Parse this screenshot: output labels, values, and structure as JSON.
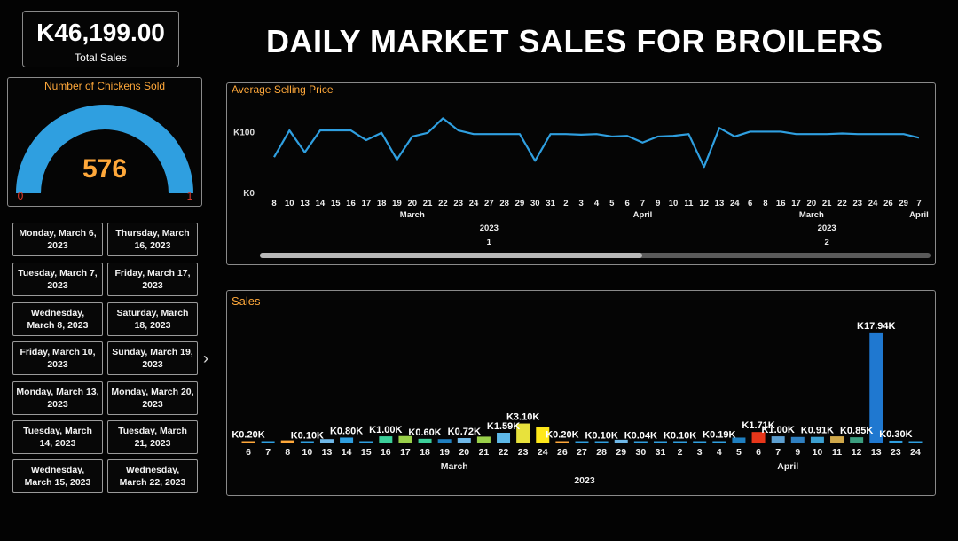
{
  "header": {
    "title": "DAILY MARKET SALES FOR BROILERS"
  },
  "kpi": {
    "value": "K46,199.00",
    "label": "Total Sales"
  },
  "gauge": {
    "title": "Number of Chickens Sold",
    "value": "576",
    "min": "0",
    "max": "1",
    "fill": 1.0,
    "color": "#2f9fe0",
    "value_color": "#ffa83a",
    "minmax_color": "#e03b2f"
  },
  "date_buttons": [
    "Monday, March 6, 2023",
    "Thursday, March 16, 2023",
    "Tuesday, March 7, 2023",
    "Friday, March 17, 2023",
    "Wednesday, March 8, 2023",
    "Saturday, March 18, 2023",
    "Friday, March 10, 2023",
    "Sunday, March 19, 2023",
    "Monday, March 13, 2023",
    "Monday, March 20, 2023",
    "Tuesday, March 14, 2023",
    "Tuesday, March 21, 2023",
    "Wednesday, March 15, 2023",
    "Wednesday, March 22, 2023"
  ],
  "chart_data": [
    {
      "type": "line",
      "title": "Average Selling Price",
      "y_ticks": [
        "K100",
        "K0"
      ],
      "ylim": [
        0,
        140
      ],
      "color": "#2f9fe0",
      "x": [
        "8",
        "10",
        "13",
        "14",
        "15",
        "16",
        "17",
        "18",
        "19",
        "20",
        "21",
        "22",
        "23",
        "24",
        "27",
        "28",
        "29",
        "30",
        "31",
        "2",
        "3",
        "4",
        "5",
        "6",
        "7",
        "9",
        "10",
        "11",
        "12",
        "13",
        "24",
        "6",
        "8",
        "16",
        "17",
        "20",
        "21",
        "22",
        "23",
        "24",
        "26",
        "29",
        "7"
      ],
      "values": [
        58,
        102,
        66,
        102,
        102,
        102,
        86,
        98,
        54,
        92,
        98,
        122,
        102,
        96,
        96,
        96,
        96,
        52,
        96,
        96,
        95,
        96,
        92,
        93,
        82,
        92,
        93,
        96,
        42,
        106,
        92,
        100,
        100,
        100,
        96,
        96,
        96,
        97,
        96,
        96,
        96,
        96,
        90
      ],
      "month_labels": [
        {
          "label": "March",
          "index": 9
        },
        {
          "label": "April",
          "index": 24
        },
        {
          "label": "March",
          "index": 35
        },
        {
          "label": "April",
          "index": 42
        }
      ],
      "year_labels": [
        {
          "label": "2023",
          "index": 14
        },
        {
          "label": "2023",
          "index": 36
        }
      ],
      "group_labels": [
        {
          "label": "1",
          "index": 14
        },
        {
          "label": "2",
          "index": 36
        }
      ],
      "scrollbar_position": 0.57
    },
    {
      "type": "bar",
      "title": "Sales",
      "categories": [
        "6",
        "7",
        "8",
        "10",
        "13",
        "14",
        "15",
        "16",
        "17",
        "18",
        "19",
        "20",
        "21",
        "22",
        "23",
        "24",
        "26",
        "27",
        "28",
        "29",
        "30",
        "31",
        "2",
        "3",
        "4",
        "5",
        "6",
        "7",
        "9",
        "10",
        "11",
        "12",
        "13",
        "23",
        "24"
      ],
      "values": [
        0.2,
        0.04,
        0.35,
        0.1,
        0.55,
        0.8,
        0.15,
        1.0,
        1.05,
        0.6,
        0.55,
        0.72,
        0.95,
        1.59,
        3.1,
        2.6,
        0.2,
        0.1,
        0.1,
        0.45,
        0.04,
        0.1,
        0.1,
        0.15,
        0.19,
        0.8,
        1.71,
        1.0,
        0.9,
        0.91,
        1.0,
        0.85,
        17.94,
        0.3,
        0.02
      ],
      "colors": [
        "#ffa83a",
        "#2f9fe0",
        "#ffa83a",
        "#2f9fe0",
        "#6fb8e8",
        "#2f9fe0",
        "#2f9fe0",
        "#3ccf9a",
        "#9ad04a",
        "#3ccf9a",
        "#1f7fc0",
        "#6fb8e8",
        "#9ad04a",
        "#5db8e8",
        "#e8e23c",
        "#ffe81a",
        "#ffa83a",
        "#2f9fe0",
        "#2f9fe0",
        "#6fb8e8",
        "#2f9fe0",
        "#2f9fe0",
        "#2f9fe0",
        "#2f9fe0",
        "#2f9fe0",
        "#1f7fc0",
        "#e8361a",
        "#5d9fd0",
        "#2f7fc0",
        "#3c9fd0",
        "#d0a84a",
        "#3c9f80",
        "#1f78d0",
        "#2f9fe0",
        "#2f9fe0"
      ],
      "data_labels": [
        {
          "text": "K0.20K",
          "index": 0
        },
        {
          "text": "K0.10K",
          "index": 3
        },
        {
          "text": "K0.80K",
          "index": 5
        },
        {
          "text": "K1.00K",
          "index": 7
        },
        {
          "text": "K0.60K",
          "index": 9
        },
        {
          "text": "K0.72K",
          "index": 11
        },
        {
          "text": "K1.59K",
          "index": 13
        },
        {
          "text": "K3.10K",
          "index": 14
        },
        {
          "text": "K0.20K",
          "index": 16
        },
        {
          "text": "K0.10K",
          "index": 18
        },
        {
          "text": "K0.04K",
          "index": 20
        },
        {
          "text": "K0.10K",
          "index": 22
        },
        {
          "text": "K0.19K",
          "index": 24
        },
        {
          "text": "K1.71K",
          "index": 26
        },
        {
          "text": "K1.00K",
          "index": 27
        },
        {
          "text": "K0.91K",
          "index": 29
        },
        {
          "text": "K0.85K",
          "index": 31
        },
        {
          "text": "K17.94K",
          "index": 32
        },
        {
          "text": "K0.30K",
          "index": 33
        }
      ],
      "month_labels": [
        {
          "label": "March",
          "index": 11
        },
        {
          "label": "April",
          "index": 28
        }
      ],
      "year_label": "2023",
      "ylim": [
        0,
        18.5
      ],
      "unit": "K"
    }
  ]
}
